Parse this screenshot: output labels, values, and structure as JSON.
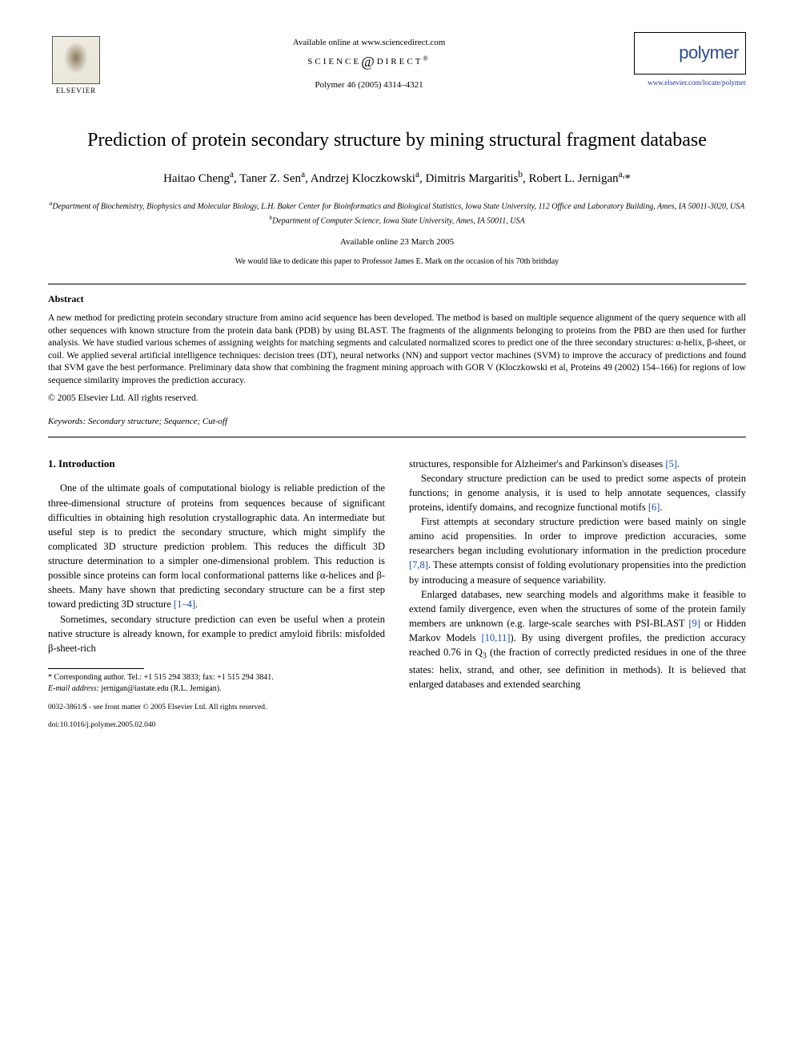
{
  "header": {
    "available_online": "Available online at www.sciencedirect.com",
    "sciencedirect": "SCIENCE",
    "sciencedirect2": "DIRECT",
    "journal_ref": "Polymer 46 (2005) 4314–4321",
    "elsevier_label": "ELSEVIER",
    "polymer_label": "polymer",
    "polymer_url": "www.elsevier.com/locate/polymer"
  },
  "title": "Prediction of protein secondary structure by mining structural fragment database",
  "authors_html": "Haitao Cheng<sup>a</sup>, Taner Z. Sen<sup>a</sup>, Andrzej Kloczkowski<sup>a</sup>, Dimitris Margaritis<sup>b</sup>, Robert L. Jernigan<sup>a,</sup>*",
  "affiliations": {
    "a": "Department of Biochemistry, Biophysics and Molecular Biology, L.H. Baker Center for Bioinformatics and Biological Statistics, Iowa State University, 112 Office and Laboratory Building, Ames, IA 50011-3020, USA",
    "b": "Department of Computer Science, Iowa State University, Ames, IA 50011, USA"
  },
  "date_available": "Available online 23 March 2005",
  "dedication": "We would like to dedicate this paper to Professor James E. Mark on the occasion of his 70th brithday",
  "abstract": {
    "heading": "Abstract",
    "text": "A new method for predicting protein secondary structure from amino acid sequence has been developed. The method is based on multiple sequence alignment of the query sequence with all other sequences with known structure from the protein data bank (PDB) by using BLAST. The fragments of the alignments belonging to proteins from the PBD are then used for further analysis. We have studied various schemes of assigning weights for matching segments and calculated normalized scores to predict one of the three secondary structures: α-helix, β-sheet, or coil. We applied several artificial intelligence techniques: decision trees (DT), neural networks (NN) and support vector machines (SVM) to improve the accuracy of predictions and found that SVM gave the best performance. Preliminary data show that combining the fragment mining approach with GOR V (Kloczkowski et al, Proteins 49 (2002) 154–166) for regions of low sequence similarity improves the prediction accuracy.",
    "copyright": "© 2005 Elsevier Ltd. All rights reserved."
  },
  "keywords": {
    "label": "Keywords:",
    "text": "Secondary structure; Sequence; Cut-off"
  },
  "intro": {
    "heading": "1. Introduction",
    "left_paras": [
      "One of the ultimate goals of computational biology is reliable prediction of the three-dimensional structure of proteins from sequences because of significant difficulties in obtaining high resolution crystallographic data. An intermediate but useful step is to predict the secondary structure, which might simplify the complicated 3D structure prediction problem. This reduces the difficult 3D structure determination to a simpler one-dimensional problem. This reduction is possible since proteins can form local conformational patterns like α-helices and β-sheets. Many have shown that predicting secondary structure can be a first step toward predicting 3D structure <span class=\"cite\">[1–4]</span>.",
      "Sometimes, secondary structure prediction can even be useful when a protein native structure is already known, for example to predict amyloid fibrils: misfolded β-sheet-rich"
    ],
    "right_paras": [
      "structures, responsible for Alzheimer's and Parkinson's diseases <span class=\"cite\">[5]</span>.",
      "Secondary structure prediction can be used to predict some aspects of protein functions; in genome analysis, it is used to help annotate sequences, classify proteins, identify domains, and recognize functional motifs <span class=\"cite\">[6]</span>.",
      "First attempts at secondary structure prediction were based mainly on single amino acid propensities. In order to improve prediction accuracies, some researchers began including evolutionary information in the prediction procedure <span class=\"cite\">[7,8]</span>. These attempts consist of folding evolutionary propensities into the prediction by introducing a measure of sequence variability.",
      "Enlarged databases, new searching models and algorithms make it feasible to extend family divergence, even when the structures of some of the protein family members are unknown (e.g. large-scale searches with PSI-BLAST <span class=\"cite\">[9]</span> or Hidden Markov Models <span class=\"cite\">[10,11]</span>). By using divergent profiles, the prediction accuracy reached 0.76 in Q<sub>3</sub> (the fraction of correctly predicted residues in one of the three states: helix, strand, and other, see definition in methods). It is believed that enlarged databases and extended searching"
    ]
  },
  "footnote": {
    "corresponding": "* Corresponding author. Tel.: +1 515 294 3833; fax: +1 515 294 3841.",
    "email_label": "E-mail address:",
    "email": "jernigan@iastate.edu (R.L. Jernigan)."
  },
  "footer": {
    "line1": "0032-3861/$ - see front matter © 2005 Elsevier Ltd. All rights reserved.",
    "line2": "doi:10.1016/j.polymer.2005.02.040"
  },
  "colors": {
    "link": "#1a4aaa",
    "polymer": "#2a4a8a",
    "text": "#000000",
    "background": "#ffffff"
  },
  "typography": {
    "title_fontsize": 24,
    "body_fontsize": 12.5,
    "abstract_fontsize": 11.5,
    "footnote_fontsize": 10,
    "font_family": "Georgia, Times New Roman, serif"
  }
}
